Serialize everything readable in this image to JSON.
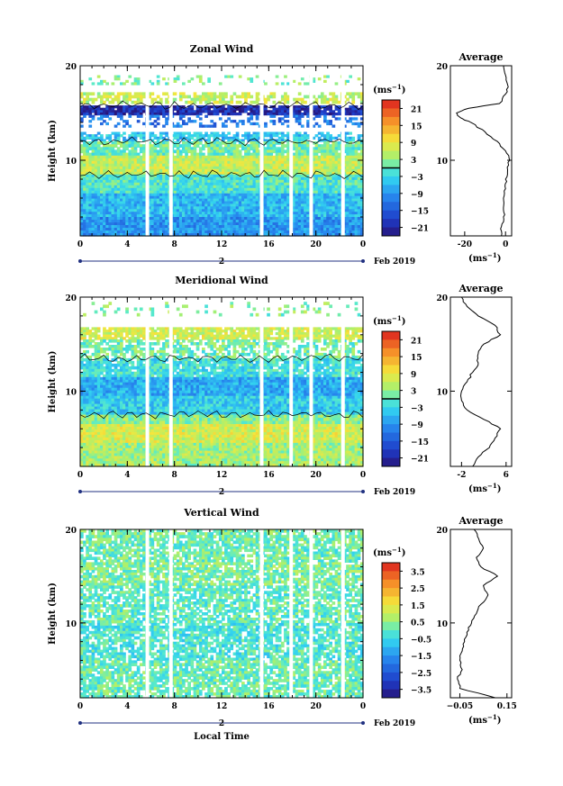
{
  "chart_data": [
    {
      "type": "heatmap",
      "title": "Zonal Wind",
      "xlabel": "",
      "ylabel": "Height (km)",
      "x_ticks": [
        "0",
        "4",
        "8",
        "12",
        "16",
        "20",
        "0"
      ],
      "date_axis": {
        "day": "2",
        "month_label": "Feb 2019"
      },
      "y_ticks": [
        "20",
        "10"
      ],
      "xlim": [
        0,
        24
      ],
      "ylim": [
        2,
        20
      ],
      "colorbar": {
        "unit": "(ms",
        "unit_exp": "−1",
        "unit_close": ")",
        "ticks": [
          "21",
          "15",
          "9",
          "3",
          "−3",
          "−9",
          "−15",
          "−21"
        ],
        "range": [
          -24,
          24
        ],
        "contour_level": 0
      },
      "bands": [
        {
          "y": [
            18,
            19
          ],
          "value": 2,
          "coverage": 0.25
        },
        {
          "y": [
            16,
            17.2
          ],
          "value": 6,
          "coverage": 0.6
        },
        {
          "y": [
            14.8,
            15.8
          ],
          "value": -20,
          "coverage": 0.9
        },
        {
          "y": [
            13.5,
            14.8
          ],
          "value": -12,
          "coverage": 0.35
        },
        {
          "y": [
            12.0,
            13.0
          ],
          "value": -5,
          "coverage": 0.7
        },
        {
          "y": [
            10.5,
            12.0
          ],
          "value": 1,
          "coverage": 0.9
        },
        {
          "y": [
            8.5,
            10.5
          ],
          "value": 6,
          "coverage": 1.0
        },
        {
          "y": [
            6.5,
            8.5
          ],
          "value": -1,
          "coverage": 1.0
        },
        {
          "y": [
            4.0,
            6.5
          ],
          "value": -6,
          "coverage": 1.0
        },
        {
          "y": [
            2.0,
            4.0
          ],
          "value": -9,
          "coverage": 1.0
        }
      ],
      "gaps_hours": [
        5.7,
        7.7,
        15.4,
        17.9,
        19.6,
        22.3
      ],
      "profile": {
        "title": "Average",
        "xlabel": "(ms",
        "xlabel_exp": "−1",
        "xlabel_close": ")",
        "x_ticks": [
          "-20",
          "0"
        ],
        "y_ticks": [
          "20",
          "10"
        ],
        "xlim": [
          -27,
          3
        ],
        "height_km": [
          2,
          3,
          4,
          5,
          6,
          7,
          8,
          9,
          10,
          11,
          12,
          13,
          14,
          14.5,
          15,
          15.5,
          16,
          17,
          18,
          19,
          20
        ],
        "wind": [
          -2,
          -2,
          -1,
          -1,
          -1,
          0,
          0,
          1,
          2,
          0,
          -4,
          -10,
          -17,
          -22,
          -24,
          -18,
          -3,
          0,
          1,
          0,
          -1
        ]
      }
    },
    {
      "type": "heatmap",
      "title": "Meridional Wind",
      "xlabel": "",
      "ylabel": "Height (km)",
      "x_ticks": [
        "0",
        "4",
        "8",
        "12",
        "16",
        "20",
        "0"
      ],
      "date_axis": {
        "day": "2",
        "month_label": "Feb 2019"
      },
      "y_ticks": [
        "20",
        "10"
      ],
      "xlim": [
        0,
        24
      ],
      "ylim": [
        2,
        20
      ],
      "colorbar": {
        "unit": "(ms",
        "unit_exp": "−1",
        "unit_close": ")",
        "ticks": [
          "21",
          "15",
          "9",
          "3",
          "−3",
          "−9",
          "−15",
          "−21"
        ],
        "range": [
          -24,
          24
        ],
        "contour_level": 0
      },
      "bands": [
        {
          "y": [
            18.0,
            19.5
          ],
          "value": 2,
          "coverage": 0.15
        },
        {
          "y": [
            15.5,
            16.8
          ],
          "value": 7,
          "coverage": 0.85
        },
        {
          "y": [
            13.5,
            15.5
          ],
          "value": 1,
          "coverage": 0.6
        },
        {
          "y": [
            11.5,
            13.5
          ],
          "value": -2,
          "coverage": 0.9
        },
        {
          "y": [
            9.5,
            11.5
          ],
          "value": -7,
          "coverage": 1.0
        },
        {
          "y": [
            7.5,
            9.5
          ],
          "value": -4,
          "coverage": 1.0
        },
        {
          "y": [
            6.5,
            7.5
          ],
          "value": 3,
          "coverage": 1.0
        },
        {
          "y": [
            4.5,
            6.5
          ],
          "value": 7,
          "coverage": 1.0
        },
        {
          "y": [
            2.0,
            4.5
          ],
          "value": 4,
          "coverage": 1.0
        }
      ],
      "gaps_hours": [
        5.7,
        7.7,
        15.4,
        17.9,
        19.6,
        22.3
      ],
      "profile": {
        "title": "Average",
        "xlabel": "(ms",
        "xlabel_exp": "−1",
        "xlabel_close": ")",
        "x_ticks": [
          "-2",
          "6"
        ],
        "y_ticks": [
          "20",
          "10"
        ],
        "xlim": [
          -4,
          7
        ],
        "height_km": [
          2,
          3,
          4,
          5,
          6,
          7,
          8,
          9,
          10,
          11,
          12,
          13,
          14,
          15,
          16,
          17,
          18,
          19,
          20
        ],
        "wind": [
          0,
          1,
          3,
          4,
          5,
          2,
          -1,
          -2,
          -2,
          -1,
          0,
          1,
          1,
          2,
          5,
          4,
          1,
          -1,
          -2
        ]
      }
    },
    {
      "type": "heatmap",
      "title": "Vertical Wind",
      "xlabel": "Local Time",
      "ylabel": "Height (km)",
      "x_ticks": [
        "0",
        "4",
        "8",
        "12",
        "16",
        "20",
        "0"
      ],
      "date_axis": {
        "day": "2",
        "month_label": "Feb 2019"
      },
      "y_ticks": [
        "20",
        "10"
      ],
      "xlim": [
        0,
        24
      ],
      "ylim": [
        2,
        20
      ],
      "colorbar": {
        "unit": "(ms",
        "unit_exp": "−1",
        "unit_close": ")",
        "ticks": [
          "3.5",
          "2.5",
          "1.5",
          "0.5",
          "−0.5",
          "−1.5",
          "−2.5",
          "−3.5"
        ],
        "range": [
          -4,
          4
        ]
      },
      "bands": [
        {
          "y": [
            18.5,
            20
          ],
          "value": 0.2,
          "coverage": 0.8
        },
        {
          "y": [
            16.5,
            18.5
          ],
          "value": 0.1,
          "coverage": 0.75
        },
        {
          "y": [
            14.0,
            16.5
          ],
          "value": 0.3,
          "coverage": 0.8
        },
        {
          "y": [
            10.0,
            14.0
          ],
          "value": 0.0,
          "coverage": 0.7
        },
        {
          "y": [
            6.0,
            10.0
          ],
          "value": -0.2,
          "coverage": 0.75
        },
        {
          "y": [
            2.0,
            6.0
          ],
          "value": 0.1,
          "coverage": 0.8
        }
      ],
      "gaps_hours": [
        5.7,
        7.7,
        15.4,
        17.9,
        19.6,
        22.3
      ],
      "profile": {
        "title": "Average",
        "xlabel": "(ms",
        "xlabel_exp": "−1",
        "xlabel_close": ")",
        "x_ticks": [
          "−0.05",
          "0.15"
        ],
        "y_ticks": [
          "20",
          "10"
        ],
        "xlim": [
          -0.09,
          0.17
        ],
        "height_km": [
          2,
          3,
          4,
          5,
          6,
          7,
          8,
          9,
          10,
          11,
          12,
          13,
          14,
          15,
          16,
          17,
          18,
          19,
          20
        ],
        "wind": [
          0.1,
          -0.05,
          -0.06,
          -0.04,
          -0.05,
          -0.04,
          -0.03,
          -0.02,
          0.0,
          0.02,
          0.04,
          0.07,
          0.05,
          0.11,
          0.04,
          0.02,
          0.05,
          0.03,
          0.01
        ]
      }
    }
  ]
}
